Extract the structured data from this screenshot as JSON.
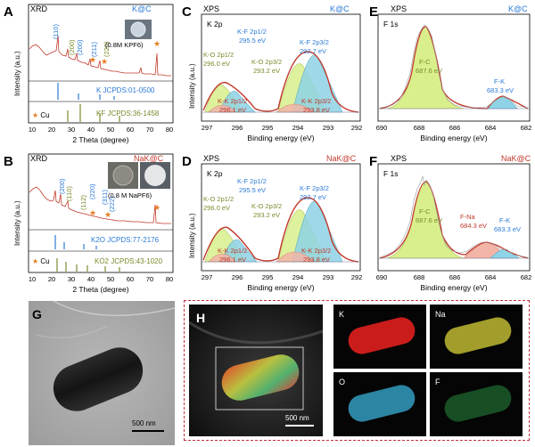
{
  "colors": {
    "blue": "#2b7bd6",
    "olive": "#7a8a2a",
    "red": "#c0392b",
    "orange": "#e67e22",
    "green_fill": "#d9ef8b",
    "blue_fill": "#8fd3e6",
    "pink_fill": "#f3b5a8",
    "frame_red": "#c0303a"
  },
  "panels": {
    "A": {
      "letter": "A",
      "technique": "XRD",
      "sample": "K@C",
      "planes": [
        "(110)",
        "(200)",
        "(200)",
        "(211)",
        "(220)"
      ],
      "inset": "(0.8M KPF6)",
      "ref1": "K JCPDS:01-0500",
      "ref2": "KF JCPDS:36-1458",
      "cu": "Cu",
      "xlabel": "2 Theta (degree)",
      "ylabel": "Intensity (a.u.)",
      "xticks": [
        "10",
        "20",
        "30",
        "40",
        "50",
        "60",
        "70",
        "80"
      ]
    },
    "B": {
      "letter": "B",
      "technique": "XRD",
      "sample": "NaK@C",
      "planes": [
        "(200)",
        "(110)",
        "(112)",
        "(220)",
        "(311)",
        "(222)"
      ],
      "inset": "(0.8 M NaPF6)",
      "ref1": "K2O JCPDS:77-2176",
      "ref2": "KO2 JCPDS:43-1020",
      "cu": "Cu",
      "xlabel": "2 Theta (degree)",
      "ylabel": "Intensity (a.u.)",
      "xticks": [
        "10",
        "20",
        "30",
        "40",
        "50",
        "60",
        "70",
        "80"
      ]
    },
    "C": {
      "letter": "C",
      "technique": "XPS",
      "sample": "K@C",
      "region": "K 2p",
      "kf12": "K-F 2p1/2",
      "kf12_ev": "295.5 eV",
      "kf32": "K-F 2p3/2",
      "kf32_ev": "292.7 eV",
      "ko12": "K-O 2p1/2",
      "ko12_ev": "296.0 eV",
      "ko32": "K-O 2p3/2",
      "ko32_ev": "293.2 eV",
      "kk12": "K-K 2p1/2",
      "kk12_ev": "296.1 eV",
      "kk32": "K-K 2p3/2",
      "kk32_ev": "293.8 eV",
      "xlabel": "Binding energy (eV)",
      "ylabel": "Intensity (a.u.)",
      "xticks": [
        "297",
        "296",
        "295",
        "294",
        "293",
        "292"
      ]
    },
    "D": {
      "letter": "D",
      "technique": "XPS",
      "sample": "NaK@C",
      "region": "K 2p",
      "kf12": "K-F 2p1/2",
      "kf12_ev": "295.5 eV",
      "kf32": "K-F 2p3/2",
      "kf32_ev": "292.7 eV",
      "ko12": "K-O 2p1/2",
      "ko12_ev": "296.0 eV",
      "ko32": "K-O 2p3/2",
      "ko32_ev": "293.2 eV",
      "kk12": "K-K 2p1/2",
      "kk12_ev": "296.1 eV",
      "kk32": "K-K 2p3/2",
      "kk32_ev": "293.8 eV",
      "xlabel": "Binding energy (eV)",
      "ylabel": "Intensity (a.u.)",
      "xticks": [
        "297",
        "296",
        "295",
        "294",
        "293",
        "292"
      ]
    },
    "E": {
      "letter": "E",
      "technique": "XPS",
      "sample": "K@C",
      "region": "F 1s",
      "fc": "F-C",
      "fc_ev": "687.6 eV",
      "fk": "F-K",
      "fk_ev": "683.3 eV",
      "xlabel": "Binding energy (eV)",
      "ylabel": "Intensity (a.u.)",
      "xticks": [
        "690",
        "688",
        "686",
        "684",
        "682"
      ]
    },
    "F": {
      "letter": "F",
      "technique": "XPS",
      "sample": "NaK@C",
      "region": "F 1s",
      "fc": "F-C",
      "fc_ev": "687.6 eV",
      "fna": "F-Na",
      "fna_ev": "684.3 eV",
      "fk": "F-K",
      "fk_ev": "683.3 eV",
      "xlabel": "Binding energy (eV)",
      "ylabel": "Intensity (a.u.)",
      "xticks": [
        "690",
        "688",
        "686",
        "684",
        "682"
      ]
    },
    "G": {
      "letter": "G",
      "scale": "500 nm"
    },
    "H": {
      "letter": "H",
      "scale": "500 nm",
      "maps": [
        {
          "label": "K",
          "color": "#e0201e"
        },
        {
          "label": "Na",
          "color": "#d8d03a"
        },
        {
          "label": "O",
          "color": "#3ab0d8"
        },
        {
          "label": "F",
          "color": "#2fa84a"
        }
      ]
    }
  }
}
